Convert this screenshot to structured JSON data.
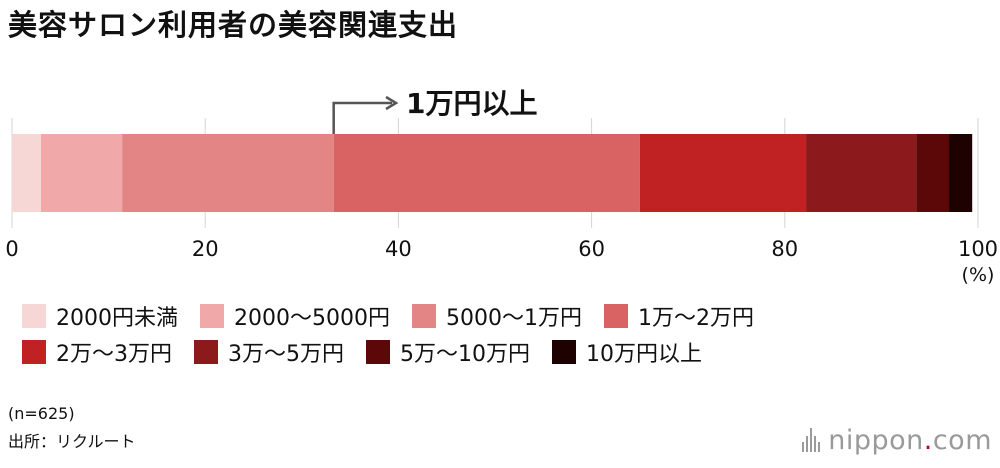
{
  "title": "美容サロン利用者の美容関連支出",
  "callout": "1万円以上",
  "chart_data": {
    "type": "bar",
    "orientation": "horizontal-stacked-100",
    "title": "美容サロン利用者の美容関連支出",
    "xlim": [
      0,
      100
    ],
    "xticks": [
      "0",
      "20",
      "40",
      "60",
      "80",
      "100"
    ],
    "xunit": "(%)",
    "grid": true,
    "legend_position": "bottom",
    "series": [
      {
        "name": "2000円未満",
        "value": 3.0,
        "color": "#f7d6d6"
      },
      {
        "name": "2000〜5000円",
        "value": 8.4,
        "color": "#f0a8a8"
      },
      {
        "name": "5000〜1万円",
        "value": 21.9,
        "color": "#e48585"
      },
      {
        "name": "1万〜2万円",
        "value": 31.7,
        "color": "#d96363"
      },
      {
        "name": "2万〜3万円",
        "value": 17.2,
        "color": "#c02224"
      },
      {
        "name": "3万〜5万円",
        "value": 11.4,
        "color": "#8c1a1c"
      },
      {
        "name": "5万〜10万円",
        "value": 3.4,
        "color": "#5c0808"
      },
      {
        "name": "10万円以上",
        "value": 2.4,
        "color": "#1e0202"
      }
    ],
    "callout_from_series_index": 3
  },
  "notes": {
    "sample": "(n=625)",
    "source": "出所：リクルート"
  },
  "logo": {
    "text": "nippon",
    "dot": ".",
    "suffix": "com"
  }
}
